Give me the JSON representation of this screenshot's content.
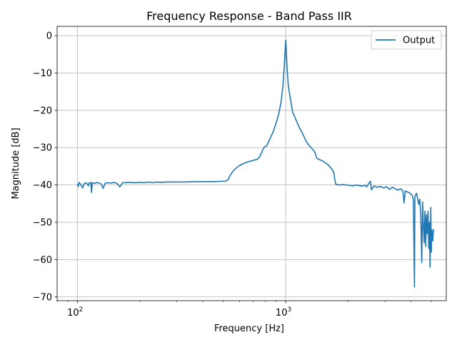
{
  "chart_data": {
    "type": "line",
    "title": "Frequency Response - Band Pass IIR",
    "xlabel": "Frequency [Hz]",
    "ylabel": "Magnitude [dB]",
    "xscale": "log",
    "xlim": [
      80,
      5900
    ],
    "ylim": [
      -71,
      2.5
    ],
    "grid": true,
    "legend_position": "top-right",
    "x_ticks": [
      {
        "base": "10",
        "exp": "2",
        "value": 100
      },
      {
        "base": "10",
        "exp": "3",
        "value": 1000
      }
    ],
    "y_ticks": [
      {
        "label": "0",
        "value": 0
      },
      {
        "label": "−10",
        "value": -10
      },
      {
        "label": "−20",
        "value": -20
      },
      {
        "label": "−30",
        "value": -30
      },
      {
        "label": "−40",
        "value": -40
      },
      {
        "label": "−50",
        "value": -50
      },
      {
        "label": "−60",
        "value": -60
      },
      {
        "label": "−70",
        "value": -70
      }
    ],
    "series": [
      {
        "name": "Output",
        "color": "#1f77b4",
        "points": [
          [
            100,
            -39.8
          ],
          [
            101,
            -40.4
          ],
          [
            102,
            -39.3
          ],
          [
            104,
            -39.9
          ],
          [
            106,
            -40.8
          ],
          [
            108,
            -39.6
          ],
          [
            110,
            -39.4
          ],
          [
            112,
            -39.8
          ],
          [
            113,
            -40.2
          ],
          [
            114,
            -39.5
          ],
          [
            116,
            -39.3
          ],
          [
            117,
            -42.0
          ],
          [
            118,
            -39.4
          ],
          [
            121,
            -39.6
          ],
          [
            125,
            -39.3
          ],
          [
            130,
            -39.7
          ],
          [
            133,
            -40.9
          ],
          [
            136,
            -39.5
          ],
          [
            140,
            -39.4
          ],
          [
            145,
            -39.5
          ],
          [
            150,
            -39.3
          ],
          [
            155,
            -39.6
          ],
          [
            160,
            -40.5
          ],
          [
            165,
            -39.4
          ],
          [
            170,
            -39.4
          ],
          [
            180,
            -39.3
          ],
          [
            190,
            -39.4
          ],
          [
            200,
            -39.3
          ],
          [
            210,
            -39.4
          ],
          [
            220,
            -39.2
          ],
          [
            230,
            -39.4
          ],
          [
            240,
            -39.2
          ],
          [
            250,
            -39.3
          ],
          [
            270,
            -39.2
          ],
          [
            300,
            -39.2
          ],
          [
            330,
            -39.2
          ],
          [
            370,
            -39.1
          ],
          [
            410,
            -39.1
          ],
          [
            450,
            -39.1
          ],
          [
            500,
            -39.0
          ],
          [
            520,
            -38.9
          ],
          [
            530,
            -38.5
          ],
          [
            540,
            -37.5
          ],
          [
            560,
            -36.2
          ],
          [
            580,
            -35.4
          ],
          [
            600,
            -34.8
          ],
          [
            630,
            -34.2
          ],
          [
            660,
            -33.8
          ],
          [
            700,
            -33.4
          ],
          [
            730,
            -33.1
          ],
          [
            750,
            -32.5
          ],
          [
            770,
            -31.0
          ],
          [
            790,
            -29.8
          ],
          [
            810,
            -29.5
          ],
          [
            830,
            -28.3
          ],
          [
            850,
            -27.0
          ],
          [
            870,
            -25.8
          ],
          [
            890,
            -24.2
          ],
          [
            910,
            -22.5
          ],
          [
            930,
            -20.5
          ],
          [
            950,
            -17.8
          ],
          [
            970,
            -13.5
          ],
          [
            985,
            -8.0
          ],
          [
            995,
            -3.5
          ],
          [
            1000,
            -1.2
          ],
          [
            1005,
            -3.0
          ],
          [
            1015,
            -8.5
          ],
          [
            1030,
            -13.5
          ],
          [
            1050,
            -16.5
          ],
          [
            1080,
            -20.5
          ],
          [
            1100,
            -21.5
          ],
          [
            1130,
            -23.0
          ],
          [
            1160,
            -24.5
          ],
          [
            1200,
            -26.0
          ],
          [
            1230,
            -27.3
          ],
          [
            1260,
            -28.5
          ],
          [
            1300,
            -29.5
          ],
          [
            1350,
            -30.5
          ],
          [
            1380,
            -31.2
          ],
          [
            1410,
            -32.8
          ],
          [
            1450,
            -33.2
          ],
          [
            1500,
            -33.5
          ],
          [
            1550,
            -34.1
          ],
          [
            1600,
            -34.6
          ],
          [
            1650,
            -35.5
          ],
          [
            1700,
            -36.5
          ],
          [
            1720,
            -38.5
          ],
          [
            1740,
            -39.8
          ],
          [
            1800,
            -40.0
          ],
          [
            1900,
            -39.9
          ],
          [
            2000,
            -40.1
          ],
          [
            2100,
            -40.2
          ],
          [
            2200,
            -40.0
          ],
          [
            2300,
            -40.3
          ],
          [
            2400,
            -40.1
          ],
          [
            2450,
            -40.5
          ],
          [
            2500,
            -39.6
          ],
          [
            2550,
            -39.0
          ],
          [
            2580,
            -41.3
          ],
          [
            2650,
            -40.3
          ],
          [
            2750,
            -40.6
          ],
          [
            2850,
            -40.4
          ],
          [
            2950,
            -40.8
          ],
          [
            3050,
            -40.5
          ],
          [
            3150,
            -41.2
          ],
          [
            3250,
            -40.6
          ],
          [
            3350,
            -41.0
          ],
          [
            3450,
            -41.4
          ],
          [
            3550,
            -41.0
          ],
          [
            3650,
            -41.5
          ],
          [
            3700,
            -44.8
          ],
          [
            3750,
            -41.6
          ],
          [
            3850,
            -41.9
          ],
          [
            3950,
            -42.2
          ],
          [
            4050,
            -42.8
          ],
          [
            4100,
            -44.0
          ],
          [
            4150,
            -67.3
          ],
          [
            4170,
            -43.0
          ],
          [
            4250,
            -42.2
          ],
          [
            4350,
            -45.2
          ],
          [
            4400,
            -43.8
          ],
          [
            4450,
            -48.0
          ],
          [
            4500,
            -60.8
          ],
          [
            4540,
            -44.5
          ],
          [
            4580,
            -51.0
          ],
          [
            4620,
            -55.5
          ],
          [
            4660,
            -47.0
          ],
          [
            4700,
            -56.5
          ],
          [
            4740,
            -48.0
          ],
          [
            4780,
            -53.0
          ],
          [
            4820,
            -47.0
          ],
          [
            4860,
            -57.0
          ],
          [
            4900,
            -50.0
          ],
          [
            4930,
            -62.0
          ],
          [
            4970,
            -46.0
          ],
          [
            5000,
            -58.0
          ],
          [
            5030,
            -52.0
          ],
          [
            5080,
            -55.0
          ],
          [
            5120,
            -51.8
          ]
        ]
      }
    ]
  }
}
